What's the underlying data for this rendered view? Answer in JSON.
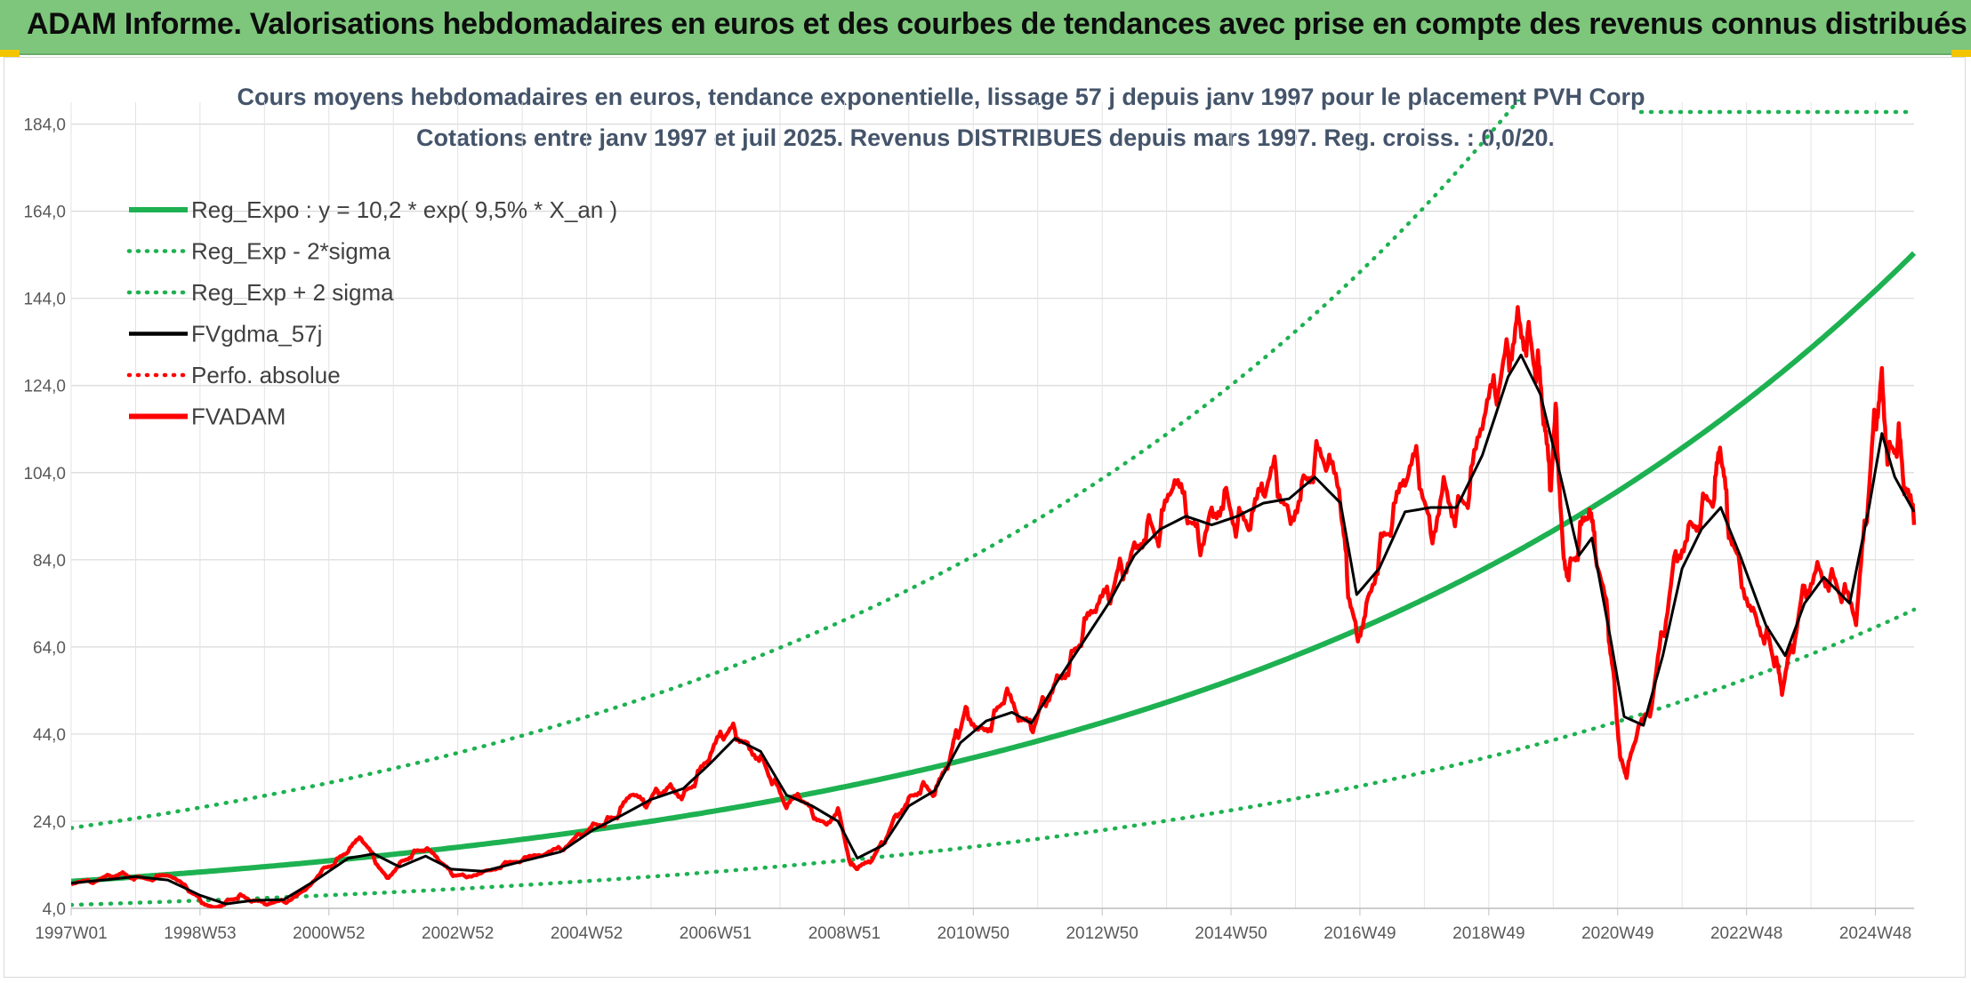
{
  "banner": {
    "title": "ADAM Informe. Valorisations hebdomadaires en euros et des courbes de tendances avec prise en compte des revenus connus distribués"
  },
  "chart_data": {
    "type": "line",
    "title": "Cours moyens hebdomadaires en euros, tendance exponentielle, lissage 57 j depuis janv 1997 pour le placement PVH Corp",
    "subtitle": "Cotations entre janv 1997 et juil 2025. Revenus DISTRIBUES depuis mars 1997. Reg. croiss. : 0,0/20.",
    "xlabel": "",
    "ylabel": "",
    "x_ticks": [
      "1997W01",
      "1998W53",
      "2000W52",
      "2002W52",
      "2004W52",
      "2006W51",
      "2008W51",
      "2010W50",
      "2012W50",
      "2014W50",
      "2016W49",
      "2018W49",
      "2020W49",
      "2022W48",
      "2024W48"
    ],
    "x_tick_years": [
      1997.0,
      1999.0,
      2001.0,
      2003.0,
      2005.0,
      2007.0,
      2009.0,
      2011.0,
      2013.0,
      2015.0,
      2017.0,
      2019.0,
      2021.0,
      2023.0,
      2025.0
    ],
    "xlim": [
      1997.0,
      2025.6
    ],
    "y_ticks": [
      "4,0",
      "24,0",
      "44,0",
      "64,0",
      "84,0",
      "104,0",
      "124,0",
      "144,0",
      "164,0",
      "184,0"
    ],
    "ylim": [
      4,
      188
    ],
    "grid": true,
    "legend_position": "top-left",
    "colors": {
      "green": "#1db151",
      "black": "#000000",
      "red": "#ff0000"
    },
    "legend": [
      {
        "label": "Reg_Expo : y = 10,2 * exp( 9,5% *  X_an )",
        "color": "#1db151",
        "style": "solid-thick"
      },
      {
        "label": "Reg_Exp - 2*sigma",
        "color": "#1db151",
        "style": "dotted"
      },
      {
        "label": "Reg_Exp + 2 sigma",
        "color": "#1db151",
        "style": "dotted"
      },
      {
        "label": "FVgdma_57j",
        "color": "#000000",
        "style": "solid"
      },
      {
        "label": "Perfo. absolue",
        "color": "#ff0000",
        "style": "dotted"
      },
      {
        "label": "FVADAM",
        "color": "#ff0000",
        "style": "solid-thick"
      }
    ],
    "regression": {
      "a": 10.2,
      "rate": 0.095,
      "start_year": 1997.0,
      "end_year": 2025.6,
      "lower_factor": 0.47,
      "upper_factor": 2.2
    },
    "series": [
      {
        "name": "FVADAM",
        "points": [
          [
            1997.0,
            9.5
          ],
          [
            1997.3,
            10.0
          ],
          [
            1997.6,
            11.5
          ],
          [
            1997.8,
            12.3
          ],
          [
            1998.0,
            11.0
          ],
          [
            1998.3,
            10.8
          ],
          [
            1998.5,
            11.5
          ],
          [
            1998.8,
            8.5
          ],
          [
            1999.0,
            6.0
          ],
          [
            1999.2,
            4.3
          ],
          [
            1999.4,
            5.5
          ],
          [
            1999.6,
            6.8
          ],
          [
            1999.8,
            5.5
          ],
          [
            2000.0,
            5.0
          ],
          [
            2000.3,
            5.5
          ],
          [
            2000.6,
            8.0
          ],
          [
            2000.9,
            13.0
          ],
          [
            2001.1,
            14.5
          ],
          [
            2001.3,
            17.0
          ],
          [
            2001.5,
            20.0
          ],
          [
            2001.7,
            15.5
          ],
          [
            2001.9,
            11.0
          ],
          [
            2002.1,
            14.5
          ],
          [
            2002.3,
            16.5
          ],
          [
            2002.5,
            17.5
          ],
          [
            2002.7,
            15.0
          ],
          [
            2002.9,
            12.0
          ],
          [
            2003.1,
            11.5
          ],
          [
            2003.4,
            12.5
          ],
          [
            2003.7,
            14.0
          ],
          [
            2004.0,
            15.0
          ],
          [
            2004.3,
            16.0
          ],
          [
            2004.6,
            17.5
          ],
          [
            2004.9,
            21.0
          ],
          [
            2005.1,
            23.5
          ],
          [
            2005.3,
            24.0
          ],
          [
            2005.5,
            25.5
          ],
          [
            2005.7,
            30.0
          ],
          [
            2005.9,
            27.5
          ],
          [
            2006.1,
            31.0
          ],
          [
            2006.3,
            32.5
          ],
          [
            2006.5,
            30.0
          ],
          [
            2006.7,
            33.5
          ],
          [
            2006.9,
            38.0
          ],
          [
            2007.1,
            43.5
          ],
          [
            2007.3,
            45.0
          ],
          [
            2007.5,
            42.0
          ],
          [
            2007.7,
            39.0
          ],
          [
            2007.9,
            33.0
          ],
          [
            2008.1,
            27.0
          ],
          [
            2008.3,
            29.5
          ],
          [
            2008.5,
            26.0
          ],
          [
            2008.7,
            23.5
          ],
          [
            2008.9,
            27.0
          ],
          [
            2009.1,
            14.0
          ],
          [
            2009.2,
            13.0
          ],
          [
            2009.4,
            14.5
          ],
          [
            2009.6,
            19.0
          ],
          [
            2009.8,
            25.5
          ],
          [
            2010.0,
            29.5
          ],
          [
            2010.2,
            32.0
          ],
          [
            2010.4,
            30.0
          ],
          [
            2010.6,
            36.0
          ],
          [
            2010.75,
            44.0
          ],
          [
            2010.9,
            50.0
          ],
          [
            2011.1,
            45.5
          ],
          [
            2011.3,
            47.0
          ],
          [
            2011.5,
            53.0
          ],
          [
            2011.7,
            47.0
          ],
          [
            2011.9,
            45.0
          ],
          [
            2012.1,
            52.0
          ],
          [
            2012.3,
            57.5
          ],
          [
            2012.5,
            60.5
          ],
          [
            2012.7,
            67.0
          ],
          [
            2012.9,
            72.0
          ],
          [
            2013.1,
            75.0
          ],
          [
            2013.3,
            82.5
          ],
          [
            2013.5,
            88.0
          ],
          [
            2013.7,
            92.5
          ],
          [
            2013.9,
            90.0
          ],
          [
            2014.1,
            100.5
          ],
          [
            2014.3,
            95.0
          ],
          [
            2014.5,
            88.0
          ],
          [
            2014.7,
            96.0
          ],
          [
            2014.9,
            100.0
          ],
          [
            2015.1,
            92.0
          ],
          [
            2015.3,
            91.0
          ],
          [
            2015.5,
            99.0
          ],
          [
            2015.7,
            104.0
          ],
          [
            2015.9,
            94.5
          ],
          [
            2016.1,
            102.0
          ],
          [
            2016.3,
            107.0
          ],
          [
            2016.5,
            105.5
          ],
          [
            2016.7,
            96.0
          ],
          [
            2016.8,
            80.0
          ],
          [
            2016.95,
            67.0
          ],
          [
            2017.1,
            74.0
          ],
          [
            2017.3,
            86.0
          ],
          [
            2017.5,
            92.0
          ],
          [
            2017.7,
            101.0
          ],
          [
            2017.9,
            106.0
          ],
          [
            2018.1,
            90.0
          ],
          [
            2018.3,
            103.0
          ],
          [
            2018.5,
            95.0
          ],
          [
            2018.7,
            99.0
          ],
          [
            2018.9,
            114.0
          ],
          [
            2019.1,
            122.0
          ],
          [
            2019.3,
            132.0
          ],
          [
            2019.45,
            142.0
          ],
          [
            2019.6,
            136.0
          ],
          [
            2019.75,
            128.0
          ],
          [
            2019.85,
            115.0
          ],
          [
            2019.95,
            100.0
          ],
          [
            2020.05,
            118.0
          ],
          [
            2020.15,
            87.0
          ],
          [
            2020.25,
            82.0
          ],
          [
            2020.4,
            88.0
          ],
          [
            2020.55,
            94.0
          ],
          [
            2020.65,
            86.0
          ],
          [
            2020.85,
            70.0
          ],
          [
            2020.95,
            56.0
          ],
          [
            2021.05,
            38.0
          ],
          [
            2021.15,
            35.0
          ],
          [
            2021.3,
            44.0
          ],
          [
            2021.5,
            48.0
          ],
          [
            2021.7,
            67.0
          ],
          [
            2021.9,
            86.0
          ],
          [
            2022.1,
            92.0
          ],
          [
            2022.3,
            95.0
          ],
          [
            2022.5,
            98.0
          ],
          [
            2022.6,
            108.0
          ],
          [
            2022.7,
            94.0
          ],
          [
            2022.9,
            82.0
          ],
          [
            2023.1,
            73.0
          ],
          [
            2023.3,
            67.0
          ],
          [
            2023.45,
            60.0
          ],
          [
            2023.55,
            53.0
          ],
          [
            2023.7,
            63.0
          ],
          [
            2023.9,
            78.0
          ],
          [
            2024.1,
            83.5
          ],
          [
            2024.3,
            80.0
          ],
          [
            2024.5,
            76.0
          ],
          [
            2024.7,
            69.0
          ],
          [
            2024.85,
            92.0
          ],
          [
            2025.0,
            118.0
          ],
          [
            2025.1,
            128.0
          ],
          [
            2025.2,
            108.0
          ],
          [
            2025.35,
            112.0
          ],
          [
            2025.45,
            99.0
          ],
          [
            2025.6,
            92.0
          ]
        ]
      },
      {
        "name": "FVgdma_57j",
        "points": [
          [
            1997.0,
            9.8
          ],
          [
            1997.5,
            10.5
          ],
          [
            1998.0,
            11.3
          ],
          [
            1998.5,
            10.5
          ],
          [
            1999.0,
            7.0
          ],
          [
            1999.4,
            5.0
          ],
          [
            1999.8,
            5.8
          ],
          [
            2000.3,
            6.0
          ],
          [
            2000.8,
            10.5
          ],
          [
            2001.3,
            15.5
          ],
          [
            2001.7,
            16.5
          ],
          [
            2002.1,
            13.5
          ],
          [
            2002.5,
            16.0
          ],
          [
            2002.9,
            13.0
          ],
          [
            2003.4,
            12.5
          ],
          [
            2004.0,
            14.8
          ],
          [
            2004.6,
            17.0
          ],
          [
            2005.1,
            22.0
          ],
          [
            2005.5,
            25.0
          ],
          [
            2006.0,
            29.0
          ],
          [
            2006.5,
            31.5
          ],
          [
            2006.9,
            37.0
          ],
          [
            2007.3,
            43.0
          ],
          [
            2007.7,
            40.0
          ],
          [
            2008.1,
            30.0
          ],
          [
            2008.5,
            27.5
          ],
          [
            2008.9,
            24.0
          ],
          [
            2009.2,
            15.5
          ],
          [
            2009.6,
            18.5
          ],
          [
            2010.0,
            27.5
          ],
          [
            2010.4,
            31.0
          ],
          [
            2010.8,
            42.0
          ],
          [
            2011.2,
            47.0
          ],
          [
            2011.6,
            49.0
          ],
          [
            2011.9,
            46.5
          ],
          [
            2012.3,
            56.0
          ],
          [
            2012.7,
            65.0
          ],
          [
            2013.1,
            74.0
          ],
          [
            2013.5,
            85.0
          ],
          [
            2013.9,
            91.0
          ],
          [
            2014.3,
            94.0
          ],
          [
            2014.7,
            92.0
          ],
          [
            2015.1,
            94.0
          ],
          [
            2015.5,
            97.0
          ],
          [
            2015.9,
            98.0
          ],
          [
            2016.3,
            103.0
          ],
          [
            2016.7,
            97.0
          ],
          [
            2016.95,
            76.0
          ],
          [
            2017.3,
            82.0
          ],
          [
            2017.7,
            95.0
          ],
          [
            2018.1,
            96.0
          ],
          [
            2018.5,
            96.0
          ],
          [
            2018.9,
            108.0
          ],
          [
            2019.3,
            126.0
          ],
          [
            2019.5,
            131.0
          ],
          [
            2019.8,
            122.0
          ],
          [
            2020.1,
            104.0
          ],
          [
            2020.4,
            85.0
          ],
          [
            2020.6,
            89.0
          ],
          [
            2020.9,
            65.0
          ],
          [
            2021.1,
            48.0
          ],
          [
            2021.4,
            46.0
          ],
          [
            2021.7,
            62.0
          ],
          [
            2022.0,
            82.0
          ],
          [
            2022.3,
            91.0
          ],
          [
            2022.6,
            96.0
          ],
          [
            2022.9,
            85.0
          ],
          [
            2023.3,
            69.0
          ],
          [
            2023.6,
            62.0
          ],
          [
            2023.9,
            74.0
          ],
          [
            2024.2,
            80.0
          ],
          [
            2024.6,
            74.0
          ],
          [
            2024.9,
            96.0
          ],
          [
            2025.1,
            113.0
          ],
          [
            2025.3,
            103.0
          ],
          [
            2025.6,
            95.0
          ]
        ]
      }
    ]
  }
}
